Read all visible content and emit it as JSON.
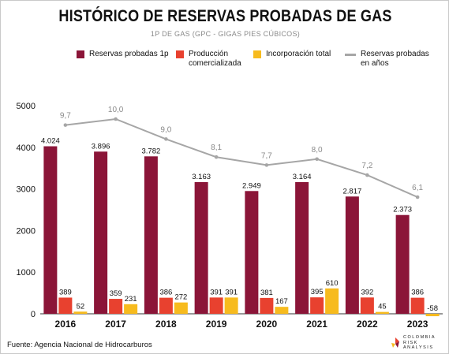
{
  "title": "HISTÓRICO DE RESERVAS PROBADAS DE GAS",
  "subtitle": "1P DE GAS (GPC - GIGAS PIES CÚBICOS)",
  "source": "Fuente: Agencia Nacional de Hidrocarburos",
  "brand": {
    "line1": "COLOMBIA",
    "line2": "RISK",
    "line3": "ANALYSIS"
  },
  "colors": {
    "reserves": "#8b1538",
    "production": "#e8412f",
    "incorporation": "#f7bb1e",
    "years_line": "#a6a6a6"
  },
  "chart_data": {
    "type": "bar",
    "categories": [
      "2016",
      "2017",
      "2018",
      "2019",
      "2020",
      "2021",
      "2022",
      "2023"
    ],
    "series": [
      {
        "name": "Reservas probadas 1p",
        "values": [
          4024,
          3896,
          3782,
          3163,
          2949,
          3164,
          2817,
          2373
        ],
        "labels": [
          "4.024",
          "3.896",
          "3.782",
          "3.163",
          "2.949",
          "3.164",
          "2.817",
          "2.373"
        ]
      },
      {
        "name": "Producción comercializada",
        "values": [
          389,
          359,
          386,
          391,
          381,
          395,
          392,
          386
        ],
        "labels": [
          "389",
          "359",
          "386",
          "391",
          "381",
          "395",
          "392",
          "386"
        ]
      },
      {
        "name": "Incorporación total",
        "values": [
          52,
          231,
          272,
          391,
          167,
          610,
          45,
          -58
        ],
        "labels": [
          "52",
          "231",
          "272",
          "391",
          "167",
          "610",
          "45",
          "-58"
        ]
      }
    ],
    "line_series": {
      "name": "Reservas probadas en años",
      "values": [
        9.7,
        10.0,
        9.0,
        8.1,
        7.7,
        8.0,
        7.2,
        6.1
      ],
      "labels": [
        "9,7",
        "10,0",
        "9,0",
        "8,1",
        "7,7",
        "8,0",
        "7,2",
        "6,1"
      ],
      "type": "line"
    },
    "y_ticks": [
      0,
      1000,
      2000,
      3000,
      4000,
      5000
    ],
    "ylim": [
      0,
      5000
    ],
    "grid": false,
    "legend_position": "top"
  }
}
